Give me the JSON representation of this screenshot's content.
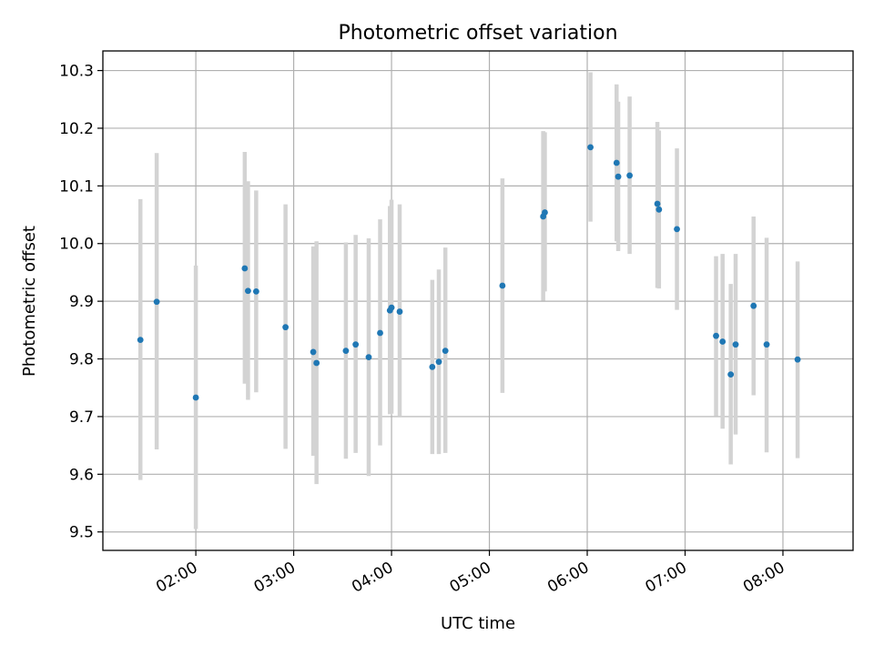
{
  "chart_data": {
    "type": "scatter",
    "title": "Photometric offset variation",
    "xlabel": "UTC time",
    "ylabel": "Photometric offset",
    "x_ticks": [
      "02:00",
      "03:00",
      "04:00",
      "05:00",
      "06:00",
      "07:00",
      "08:00"
    ],
    "x_tick_hours": [
      2,
      3,
      4,
      5,
      6,
      7,
      8
    ],
    "y_ticks": [
      "9.5",
      "9.6",
      "9.7",
      "9.8",
      "9.9",
      "10.0",
      "10.1",
      "10.2",
      "10.3"
    ],
    "xlim": [
      "01:03",
      "08:43"
    ],
    "ylim": [
      9.468,
      10.334
    ],
    "grid": true,
    "colors": {
      "point": "#1f77b4",
      "errorbar": "#d3d3d3",
      "grid": "#b0b0b0"
    },
    "series": [
      {
        "points": [
          {
            "x": "01:26",
            "y": 9.833,
            "low": 9.59,
            "high": 10.077
          },
          {
            "x": "01:36",
            "y": 9.899,
            "low": 9.643,
            "high": 10.157
          },
          {
            "x": "02:00",
            "y": 9.733,
            "low": 9.505,
            "high": 9.962
          },
          {
            "x": "02:30",
            "y": 9.957,
            "low": 9.757,
            "high": 10.159
          },
          {
            "x": "02:32",
            "y": 9.918,
            "low": 9.729,
            "high": 10.108
          },
          {
            "x": "02:37",
            "y": 9.917,
            "low": 9.742,
            "high": 10.092
          },
          {
            "x": "02:55",
            "y": 9.855,
            "low": 9.644,
            "high": 10.068
          },
          {
            "x": "03:12",
            "y": 9.812,
            "low": 9.632,
            "high": 9.995
          },
          {
            "x": "03:14",
            "y": 9.793,
            "low": 9.583,
            "high": 10.004
          },
          {
            "x": "03:32",
            "y": 9.814,
            "low": 9.627,
            "high": 10.002
          },
          {
            "x": "03:38",
            "y": 9.825,
            "low": 9.637,
            "high": 10.015
          },
          {
            "x": "03:46",
            "y": 9.803,
            "low": 9.597,
            "high": 10.009
          },
          {
            "x": "03:53",
            "y": 9.845,
            "low": 9.65,
            "high": 10.042
          },
          {
            "x": "03:59",
            "y": 9.884,
            "low": 9.704,
            "high": 10.065
          },
          {
            "x": "04:00",
            "y": 9.889,
            "low": 9.705,
            "high": 10.076
          },
          {
            "x": "04:05",
            "y": 9.882,
            "low": 9.7,
            "high": 10.068
          },
          {
            "x": "04:25",
            "y": 9.786,
            "low": 9.635,
            "high": 9.937
          },
          {
            "x": "04:29",
            "y": 9.795,
            "low": 9.635,
            "high": 9.955
          },
          {
            "x": "04:33",
            "y": 9.814,
            "low": 9.637,
            "high": 9.993
          },
          {
            "x": "05:08",
            "y": 9.927,
            "low": 9.741,
            "high": 10.113
          },
          {
            "x": "05:33",
            "y": 10.047,
            "low": 9.901,
            "high": 10.195
          },
          {
            "x": "05:34",
            "y": 10.054,
            "low": 9.917,
            "high": 10.193
          },
          {
            "x": "06:02",
            "y": 10.167,
            "low": 10.038,
            "high": 10.297
          },
          {
            "x": "06:18",
            "y": 10.14,
            "low": 10.004,
            "high": 10.276
          },
          {
            "x": "06:19",
            "y": 10.116,
            "low": 9.987,
            "high": 10.246
          },
          {
            "x": "06:26",
            "y": 10.118,
            "low": 9.982,
            "high": 10.255
          },
          {
            "x": "06:43",
            "y": 10.069,
            "low": 9.923,
            "high": 10.211
          },
          {
            "x": "06:44",
            "y": 10.059,
            "low": 9.922,
            "high": 10.196
          },
          {
            "x": "06:55",
            "y": 10.025,
            "low": 9.885,
            "high": 10.165
          },
          {
            "x": "07:19",
            "y": 9.84,
            "low": 9.701,
            "high": 9.978
          },
          {
            "x": "07:23",
            "y": 9.83,
            "low": 9.679,
            "high": 9.982
          },
          {
            "x": "07:28",
            "y": 9.773,
            "low": 9.617,
            "high": 9.93
          },
          {
            "x": "07:31",
            "y": 9.825,
            "low": 9.669,
            "high": 9.982
          },
          {
            "x": "07:42",
            "y": 9.892,
            "low": 9.737,
            "high": 10.047
          },
          {
            "x": "07:50",
            "y": 9.825,
            "low": 9.638,
            "high": 10.01
          },
          {
            "x": "08:09",
            "y": 9.799,
            "low": 9.628,
            "high": 9.969
          }
        ]
      }
    ]
  }
}
